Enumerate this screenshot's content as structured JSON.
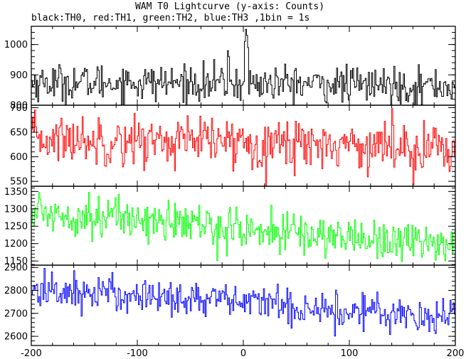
{
  "title": "WAM T0 Lightcurve (y-axis: Counts)",
  "subtitle": "black:TH0, red:TH1, green:TH2, blue:TH3 ,1bin = 1s",
  "chart_data": [
    {
      "type": "line",
      "name": "TH0",
      "color": "#000000",
      "x_range": [
        -200,
        200
      ],
      "bin_seconds": 1,
      "ylim": [
        800,
        1060
      ],
      "yticks": [
        800,
        900,
        1000
      ],
      "baseline_segments": [
        [
          -200,
          875
        ],
        [
          -100,
          875
        ],
        [
          0,
          872
        ],
        [
          100,
          868
        ],
        [
          200,
          862
        ]
      ],
      "noise_sigma": 30,
      "features": [
        {
          "x": -15,
          "value": 980
        },
        {
          "x": -14,
          "value": 960
        },
        {
          "x": 1,
          "value": 1010
        },
        {
          "x": 2,
          "value": 1050
        },
        {
          "x": 3,
          "value": 1030
        },
        {
          "x": 4,
          "value": 990
        }
      ]
    },
    {
      "type": "line",
      "name": "TH1",
      "color": "#ff0000",
      "x_range": [
        -200,
        200
      ],
      "bin_seconds": 1,
      "ylim": [
        540,
        705
      ],
      "yticks": [
        550,
        600,
        650,
        700
      ],
      "baseline_segments": [
        [
          -200,
          637
        ],
        [
          -100,
          633
        ],
        [
          0,
          630
        ],
        [
          100,
          625
        ],
        [
          200,
          618
        ]
      ],
      "noise_sigma": 25
    },
    {
      "type": "line",
      "name": "TH2",
      "color": "#00ff00",
      "x_range": [
        -200,
        200
      ],
      "bin_seconds": 1,
      "ylim": [
        1138,
        1365
      ],
      "yticks": [
        1150,
        1200,
        1250,
        1300,
        1350
      ],
      "baseline_segments": [
        [
          -200,
          1290
        ],
        [
          -100,
          1272
        ],
        [
          0,
          1240
        ],
        [
          100,
          1218
        ],
        [
          200,
          1200
        ]
      ],
      "noise_sigma": 30
    },
    {
      "type": "line",
      "name": "TH3",
      "color": "#0000ff",
      "x_range": [
        -200,
        200
      ],
      "bin_seconds": 1,
      "ylim": [
        2560,
        2910
      ],
      "yticks": [
        2600,
        2700,
        2800,
        2900
      ],
      "baseline_segments": [
        [
          -200,
          2800
        ],
        [
          -100,
          2780
        ],
        [
          0,
          2750
        ],
        [
          100,
          2710
        ],
        [
          200,
          2690
        ]
      ],
      "noise_sigma": 40
    }
  ],
  "x_axis": {
    "range": [
      -200,
      200
    ],
    "ticks": [
      -200,
      -100,
      0,
      100,
      200
    ]
  }
}
